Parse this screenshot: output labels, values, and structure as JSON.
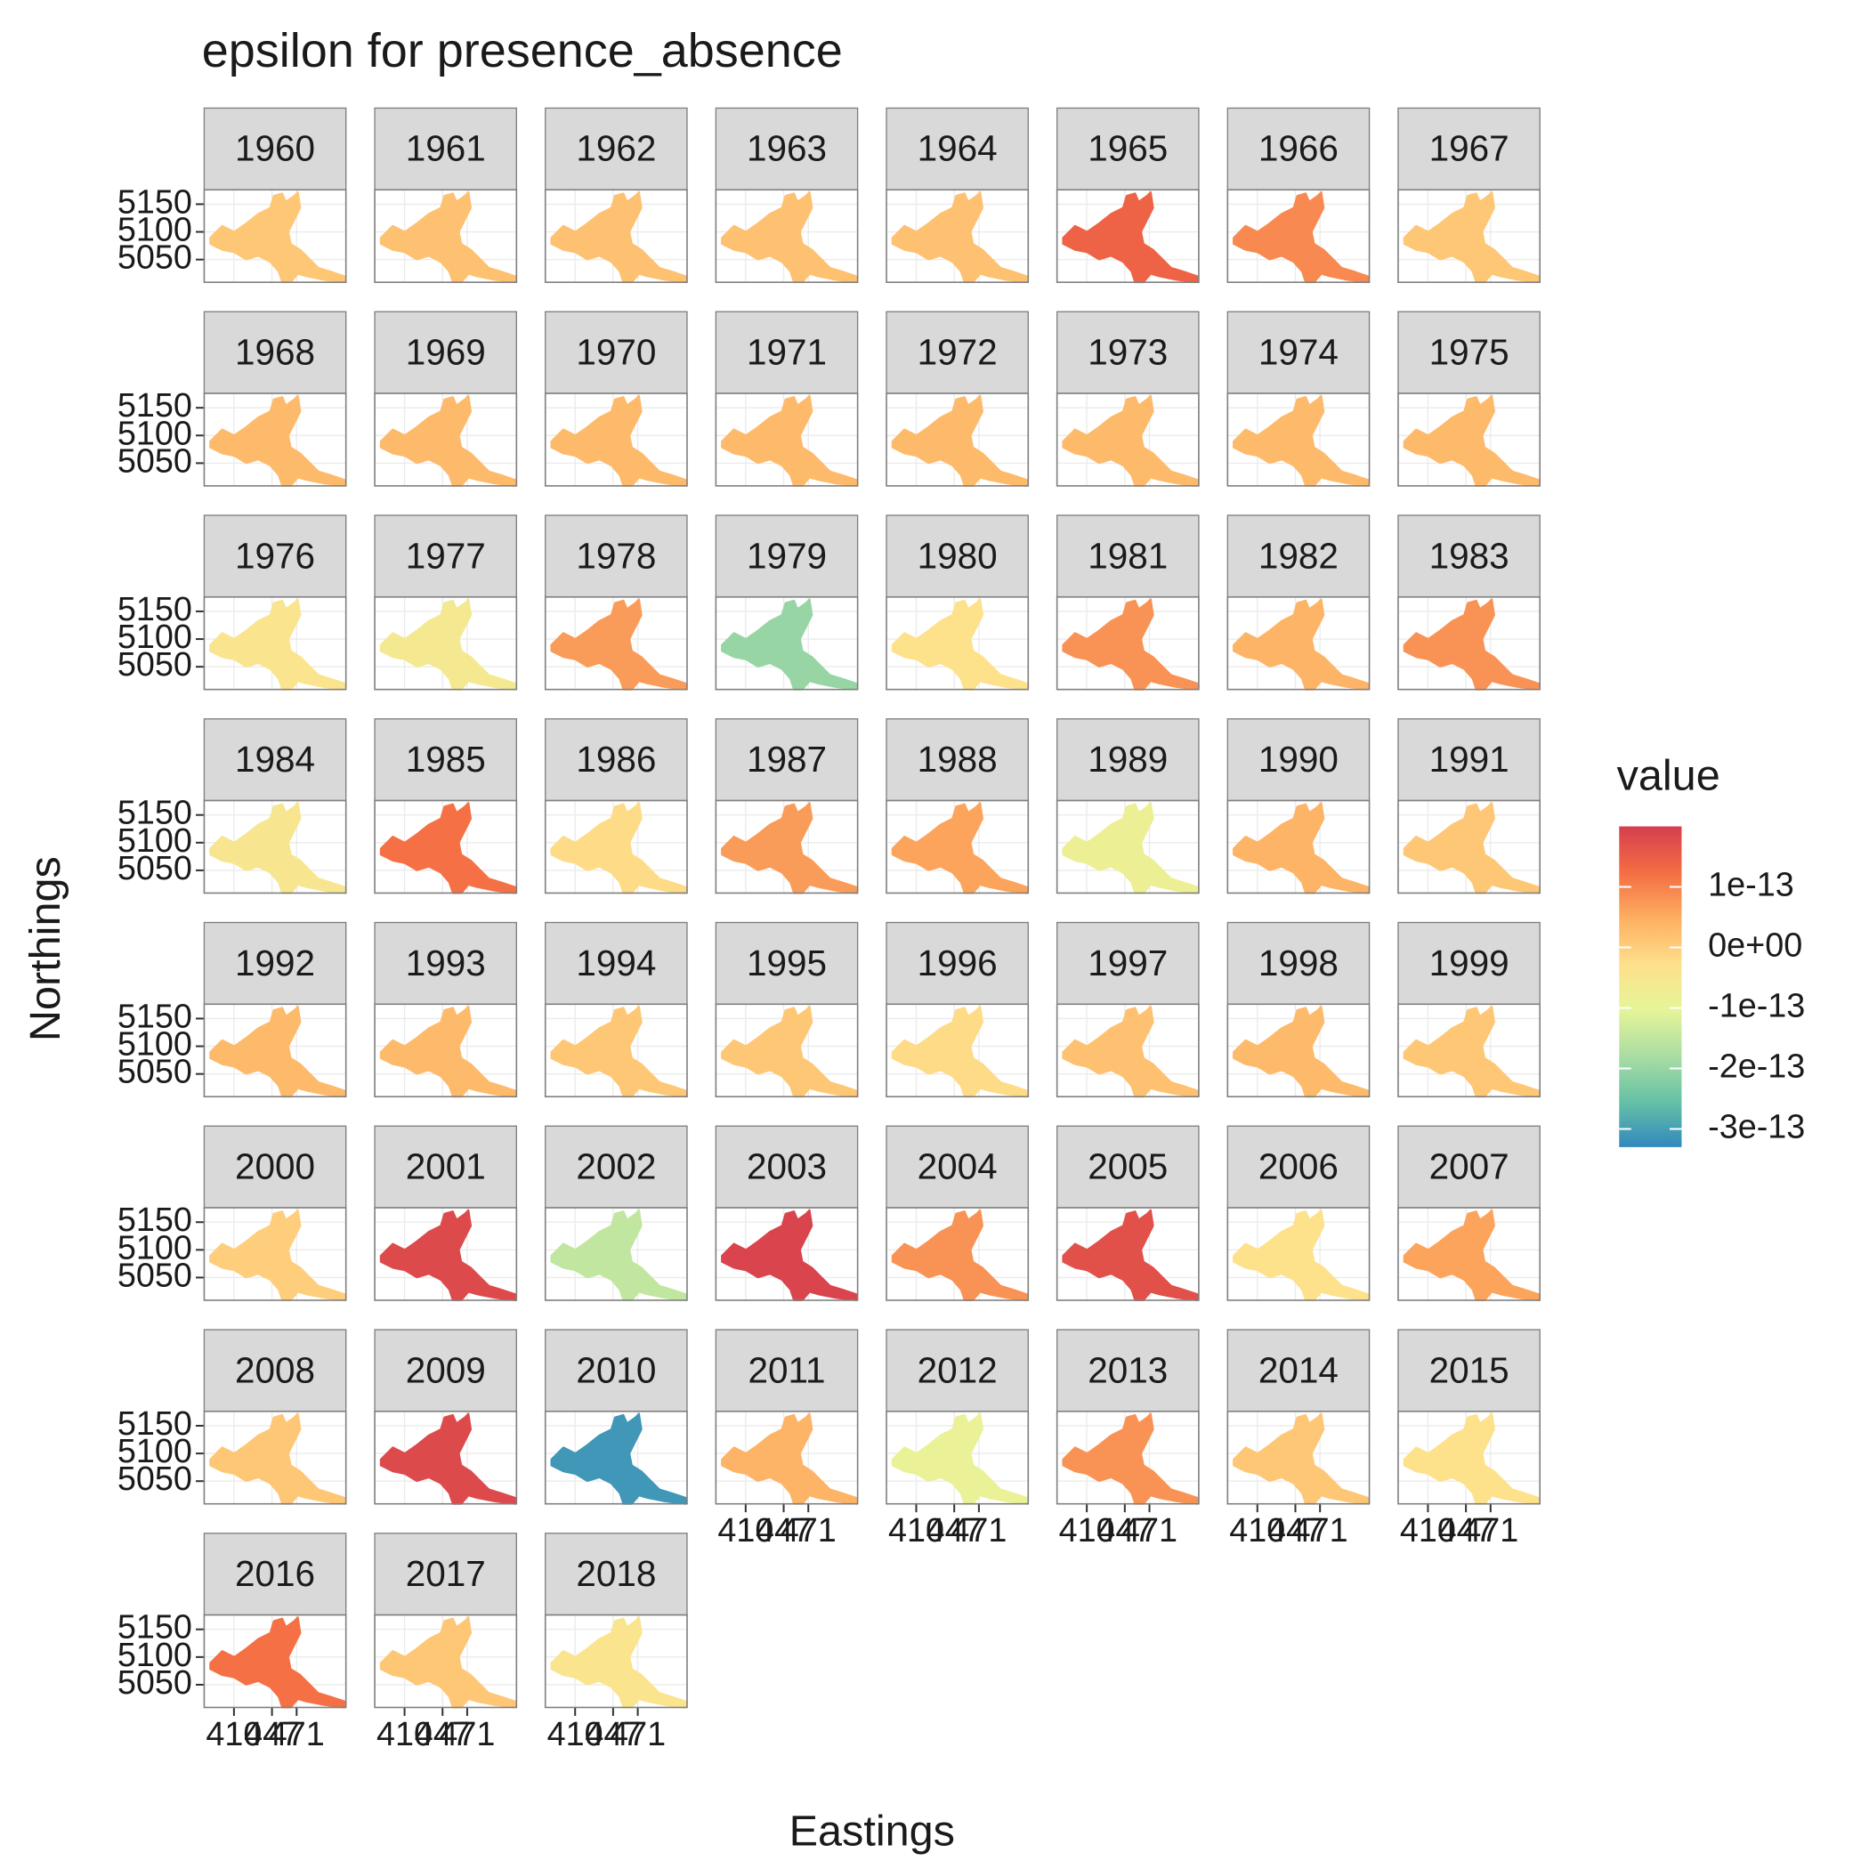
{
  "chart_data": {
    "type": "facet-map",
    "title": "epsilon for presence_absence",
    "x_label": "Eastings",
    "y_label": "Northings",
    "legend_title": "value",
    "facets": [
      "1960",
      "1961",
      "1962",
      "1963",
      "1964",
      "1965",
      "1966",
      "1967",
      "1968",
      "1969",
      "1970",
      "1971",
      "1972",
      "1973",
      "1974",
      "1975",
      "1976",
      "1977",
      "1978",
      "1979",
      "1980",
      "1981",
      "1982",
      "1983",
      "1984",
      "1985",
      "1986",
      "1987",
      "1988",
      "1989",
      "1990",
      "1991",
      "1992",
      "1993",
      "1994",
      "1995",
      "1996",
      "1997",
      "1998",
      "1999",
      "2000",
      "2001",
      "2002",
      "2003",
      "2004",
      "2005",
      "2006",
      "2007",
      "2008",
      "2009",
      "2010",
      "2011",
      "2012",
      "2013",
      "2014",
      "2015",
      "2016",
      "2017",
      "2018"
    ],
    "values": [
      1e-14,
      2e-14,
      2e-14,
      2e-14,
      2e-14,
      1.4e-13,
      9e-14,
      1e-14,
      3e-14,
      3e-14,
      3e-14,
      3e-14,
      3e-14,
      3e-14,
      3e-14,
      3e-14,
      -4e-14,
      -6e-14,
      7e-14,
      -2e-13,
      -3e-14,
      8e-14,
      4e-14,
      8e-14,
      -5e-14,
      1.2e-13,
      -2e-14,
      7e-14,
      6e-14,
      -8e-14,
      4e-14,
      1e-14,
      3e-14,
      3e-14,
      1e-14,
      1e-14,
      -2e-14,
      2e-14,
      3e-14,
      1e-14,
      0,
      1.8e-13,
      -1.5e-13,
      1.9e-13,
      8e-14,
      1.7e-13,
      -3e-14,
      6e-14,
      1e-14,
      1.8e-13,
      -3.1e-13,
      4e-14,
      -9e-14,
      8e-14,
      1e-14,
      -3e-14,
      1.2e-13,
      1e-14,
      -4e-14
    ],
    "xlim": [
      381,
      519
    ],
    "xticks": [
      410,
      447,
      471
    ],
    "ylim": [
      5009,
      5176
    ],
    "yticks": [
      5050,
      5100,
      5150
    ],
    "colorlim": [
      -3.3e-13,
      2e-13
    ],
    "colorticks": [
      {
        "value": 1e-13,
        "label": "1e-13"
      },
      {
        "value": 0,
        "label": "0e+00"
      },
      {
        "value": -1e-13,
        "label": "-1e-13"
      },
      {
        "value": -2e-13,
        "label": "-2e-13"
      },
      {
        "value": -3e-13,
        "label": "-3e-13"
      }
    ],
    "palette": [
      "#3288bd",
      "#66c2a5",
      "#abdda4",
      "#e6f598",
      "#fee08b",
      "#fdae61",
      "#f46d43",
      "#d53e4f"
    ],
    "ncol": 8,
    "grid": true
  }
}
